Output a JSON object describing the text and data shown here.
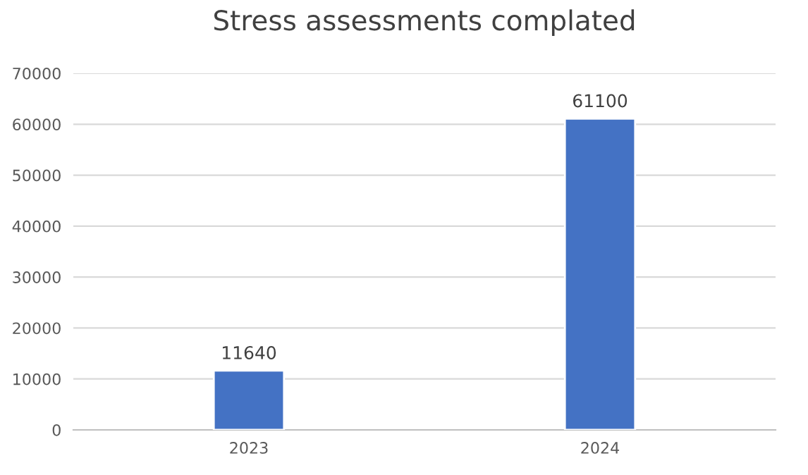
{
  "chart_data": {
    "type": "bar",
    "title": "Stress assessments complated",
    "categories": [
      "2023",
      "2024"
    ],
    "values": [
      11640,
      61100
    ],
    "color": "#4472c4",
    "ylim": [
      0,
      70000
    ],
    "yticks": [
      0,
      10000,
      20000,
      30000,
      40000,
      50000,
      60000,
      70000
    ],
    "grid": "y",
    "data_labels": true
  }
}
